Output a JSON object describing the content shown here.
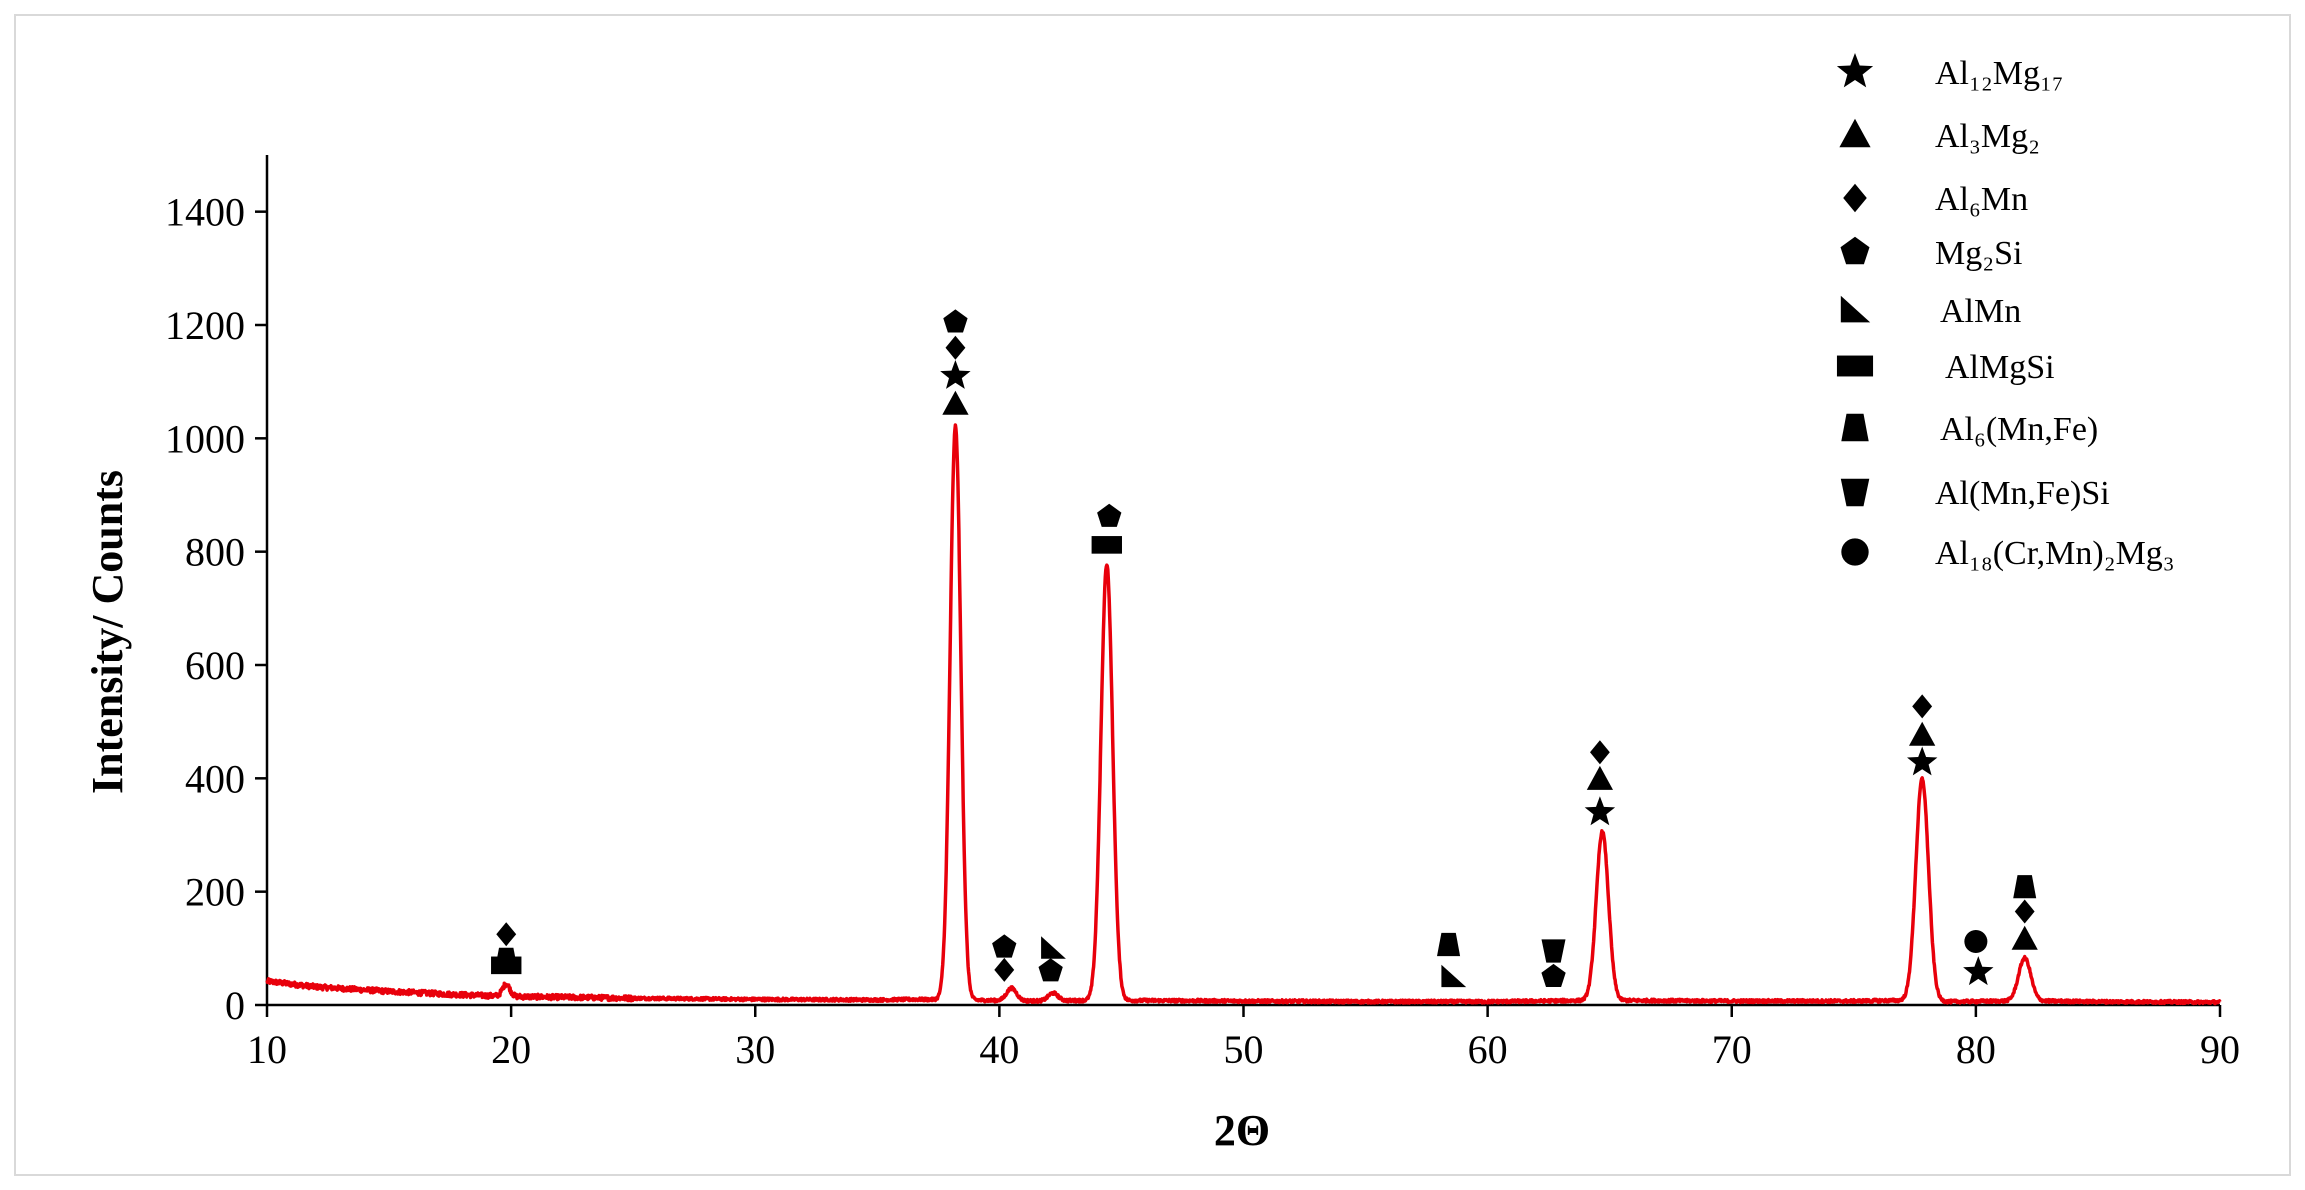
{
  "chart_data": {
    "type": "line",
    "title": "",
    "xlabel": "2Θ",
    "ylabel": "Intensity/ Counts",
    "xlim": [
      10,
      90
    ],
    "ylim": [
      0,
      1500
    ],
    "xticks": [
      10,
      20,
      30,
      40,
      50,
      60,
      70,
      80,
      90
    ],
    "yticks": [
      0,
      200,
      400,
      600,
      800,
      1000,
      1200,
      1400
    ],
    "grid": false,
    "legend_position": "top-right",
    "line_color": "#e8000b",
    "baseline": [
      [
        10,
        42
      ],
      [
        12,
        32
      ],
      [
        15,
        24
      ],
      [
        18,
        18
      ],
      [
        20,
        15
      ],
      [
        25,
        12
      ],
      [
        30,
        10
      ],
      [
        35,
        9
      ],
      [
        36.5,
        10
      ],
      [
        40,
        8
      ],
      [
        42,
        7
      ],
      [
        43,
        8
      ],
      [
        46,
        8
      ],
      [
        50,
        7
      ],
      [
        55,
        6
      ],
      [
        60,
        6
      ],
      [
        64,
        8
      ],
      [
        66,
        8
      ],
      [
        70,
        7
      ],
      [
        75,
        7
      ],
      [
        76.6,
        8
      ],
      [
        79,
        6
      ],
      [
        81,
        7
      ],
      [
        83,
        7
      ],
      [
        85,
        6
      ],
      [
        90,
        5
      ]
    ],
    "peaks": [
      {
        "center": 19.8,
        "height": 22,
        "width": 0.15
      },
      {
        "center": 38.2,
        "height": 1012,
        "width": 0.22
      },
      {
        "center": 40.5,
        "height": 22,
        "width": 0.2
      },
      {
        "center": 42.2,
        "height": 14,
        "width": 0.2
      },
      {
        "center": 44.4,
        "height": 770,
        "width": 0.24
      },
      {
        "center": 64.7,
        "height": 298,
        "width": 0.25
      },
      {
        "center": 77.8,
        "height": 392,
        "width": 0.26
      },
      {
        "center": 82.0,
        "height": 76,
        "width": 0.25
      }
    ],
    "legend": [
      {
        "marker": "star",
        "label": "Al₁₂Mg₁₇"
      },
      {
        "marker": "triangle",
        "label": "Al₃Mg₂"
      },
      {
        "marker": "diamond",
        "label": "Al₆Mn"
      },
      {
        "marker": "pentagon",
        "label": "Mg₂Si"
      },
      {
        "marker": "right-triangle",
        "label": "AlMn"
      },
      {
        "marker": "rectangle",
        "label": "AlMgSi"
      },
      {
        "marker": "trapezoid",
        "label": "Al₆(Mn,Fe)"
      },
      {
        "marker": "inverted-trapezoid",
        "label": "Al(Mn,Fe)Si"
      },
      {
        "marker": "circle",
        "label": "Al₁₈(Cr,Mn)₂Mg₃"
      }
    ],
    "phase_markers": [
      {
        "marker": "diamond",
        "x": 19.8,
        "y": 125
      },
      {
        "marker": "trapezoid",
        "x": 19.8,
        "y": 80
      },
      {
        "marker": "rectangle",
        "x": 19.8,
        "y": 70
      },
      {
        "marker": "pentagon",
        "x": 38.2,
        "y": 1205
      },
      {
        "marker": "diamond",
        "x": 38.2,
        "y": 1160
      },
      {
        "marker": "star",
        "x": 38.2,
        "y": 1110
      },
      {
        "marker": "triangle",
        "x": 38.2,
        "y": 1060
      },
      {
        "marker": "pentagon",
        "x": 40.2,
        "y": 102
      },
      {
        "marker": "diamond",
        "x": 40.2,
        "y": 62
      },
      {
        "marker": "right-triangle",
        "x": 42.2,
        "y": 100
      },
      {
        "marker": "pentagon",
        "x": 42.1,
        "y": 60
      },
      {
        "marker": "pentagon",
        "x": 44.5,
        "y": 862
      },
      {
        "marker": "rectangle",
        "x": 44.4,
        "y": 812
      },
      {
        "marker": "trapezoid",
        "x": 58.4,
        "y": 106
      },
      {
        "marker": "right-triangle",
        "x": 58.6,
        "y": 50
      },
      {
        "marker": "inverted-trapezoid",
        "x": 62.7,
        "y": 96
      },
      {
        "marker": "pentagon",
        "x": 62.7,
        "y": 50
      },
      {
        "marker": "diamond",
        "x": 64.6,
        "y": 446
      },
      {
        "marker": "triangle",
        "x": 64.6,
        "y": 398
      },
      {
        "marker": "star",
        "x": 64.6,
        "y": 340
      },
      {
        "marker": "diamond",
        "x": 77.8,
        "y": 527
      },
      {
        "marker": "triangle",
        "x": 77.8,
        "y": 476
      },
      {
        "marker": "star",
        "x": 77.8,
        "y": 428
      },
      {
        "marker": "circle",
        "x": 80.0,
        "y": 112
      },
      {
        "marker": "star",
        "x": 80.1,
        "y": 58
      },
      {
        "marker": "trapezoid",
        "x": 82.0,
        "y": 208
      },
      {
        "marker": "diamond",
        "x": 82.0,
        "y": 165
      },
      {
        "marker": "triangle",
        "x": 82.0,
        "y": 116
      }
    ]
  }
}
